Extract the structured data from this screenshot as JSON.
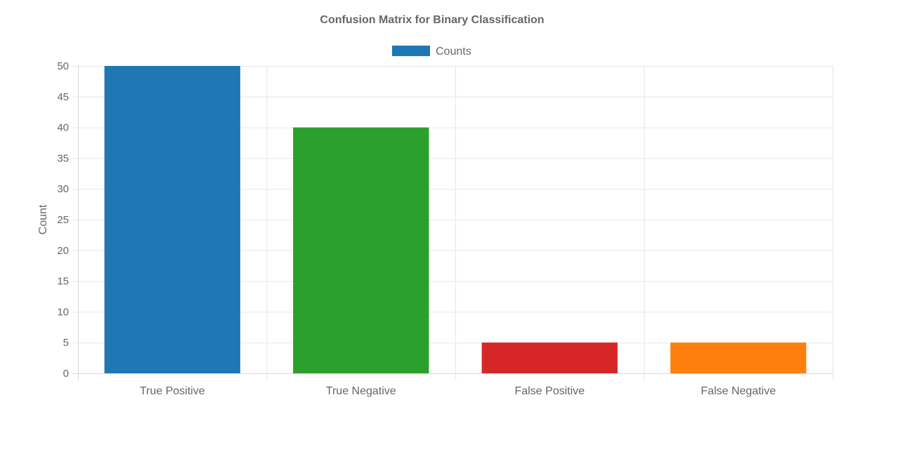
{
  "chart_data": {
    "type": "bar",
    "title": "Confusion Matrix for Binary Classification",
    "xlabel": "",
    "ylabel": "Count",
    "categories": [
      "True Positive",
      "True Negative",
      "False Positive",
      "False Negative"
    ],
    "series": [
      {
        "name": "Counts",
        "values": [
          50,
          40,
          5,
          5
        ],
        "colors": [
          "#1f77b4",
          "#2ca02c",
          "#d62728",
          "#ff7f0e"
        ]
      }
    ],
    "ylim": [
      0,
      50
    ],
    "yticks": [
      0,
      5,
      10,
      15,
      20,
      25,
      30,
      35,
      40,
      45,
      50
    ],
    "grid": true,
    "legend_position": "top-center"
  },
  "colors": {
    "text": "#666666",
    "grid": "#e6e6e6",
    "axis": "#d9d9d9",
    "legend_swatch": "#1f77b4"
  }
}
